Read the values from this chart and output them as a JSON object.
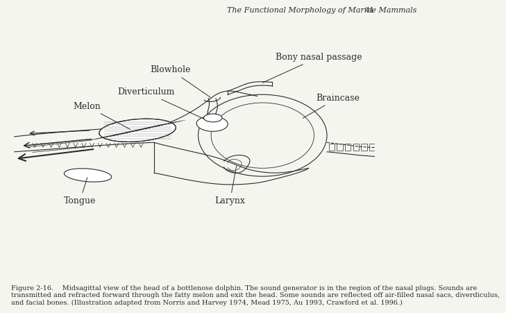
{
  "title_header": "The Functional Morphology of Marine Mammals",
  "page_number": "41",
  "figure_caption": "Figure 2-16.    Midsagittal view of the head of a bottlenose dolphin. The sound generator is in the region of the nasal plugs. Sounds are\ntransmitted and refracted forward through the fatty melon and exit the head. Some sounds are reflected off air-filled nasal sacs, diverdiculus,\nand facial bones. (Illustration adapted from Norris and Harvey 1974, Mead 1975, Au 1993, Crawford et al. 1996.)",
  "background_color": "#f5f5f0",
  "line_color": "#2a2a2a",
  "label_fontsize": 9,
  "header_fontsize": 8,
  "caption_fontsize": 7
}
